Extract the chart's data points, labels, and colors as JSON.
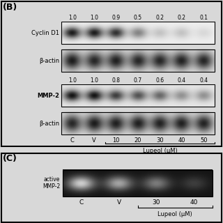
{
  "panel_B_label": "(B)",
  "panel_C_label": "(C)",
  "cyclin_d1_values": [
    1.0,
    1.0,
    0.9,
    0.5,
    0.2,
    0.2,
    0.1
  ],
  "mmp2_values": [
    1.0,
    1.0,
    0.8,
    0.7,
    0.6,
    0.4,
    0.4
  ],
  "bactin_vals": [
    0.9,
    0.85,
    0.88,
    0.85,
    0.85,
    0.87,
    0.86
  ],
  "bactin2_vals": [
    0.85,
    0.9,
    0.88,
    0.88,
    0.87,
    0.88,
    0.87
  ],
  "x_labels_B": [
    "C",
    "V",
    "10",
    "20",
    "30",
    "40",
    "50"
  ],
  "x_labels_C": [
    "C",
    "V",
    "30",
    "40"
  ],
  "lupeol_label": "Lupeol (μM)",
  "active_mmp2_label": "active\nMMP-2",
  "cyclin_d1_label": "Cyclin D1",
  "bactin_label": "β-actin",
  "mmp2_label": "MMP-2",
  "bg_color": "#d8d8d8",
  "panel_c_intensities": [
    0.9,
    0.7,
    0.5,
    0.2
  ],
  "panel_c_labels": [
    "C",
    "V",
    "30",
    "40"
  ]
}
